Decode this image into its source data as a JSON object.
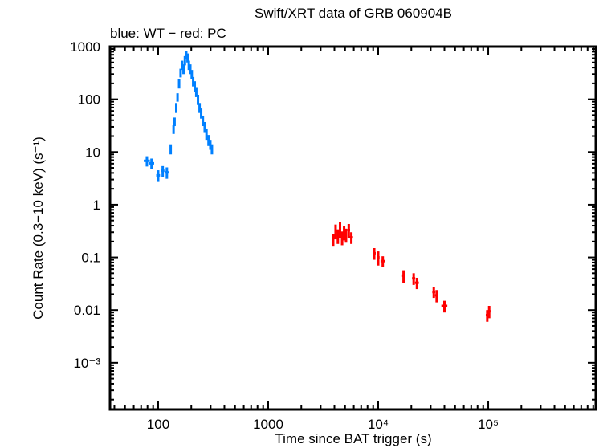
{
  "chart_data": {
    "type": "scatter",
    "title": "Swift/XRT data of GRB 060904B",
    "subtitle": "blue: WT − red: PC",
    "xlabel": "Time since BAT trigger (s)",
    "ylabel": "Count Rate (0.3−10 keV) (s⁻¹)",
    "xscale": "log",
    "yscale": "log",
    "xlim": [
      36.5,
      950000
    ],
    "ylim": [
      0.00013,
      1000
    ],
    "xticks": [
      {
        "value": 100,
        "label": "100"
      },
      {
        "value": 1000,
        "label": "1000"
      },
      {
        "value": 10000,
        "label": "10⁴"
      },
      {
        "value": 100000,
        "label": "10⁵"
      }
    ],
    "yticks": [
      {
        "value": 1000,
        "label": "1000"
      },
      {
        "value": 100,
        "label": "100"
      },
      {
        "value": 10,
        "label": "10"
      },
      {
        "value": 1,
        "label": "1"
      },
      {
        "value": 0.1,
        "label": "0.1"
      },
      {
        "value": 0.01,
        "label": "0.01"
      },
      {
        "value": 0.001,
        "label": "10⁻³"
      }
    ],
    "grid": false,
    "legend": "none",
    "series": [
      {
        "name": "WT",
        "color": "#0080ff",
        "points": [
          {
            "x": 79,
            "y": 6.8,
            "xerr": 5,
            "yerr": 1.5
          },
          {
            "x": 87,
            "y": 6.1,
            "xerr": 5,
            "yerr": 1.4
          },
          {
            "x": 100,
            "y": 3.6,
            "xerr": 4,
            "yerr": 0.9
          },
          {
            "x": 110,
            "y": 4.4,
            "xerr": 4,
            "yerr": 1.0
          },
          {
            "x": 120,
            "y": 4.1,
            "xerr": 5,
            "yerr": 1.0
          },
          {
            "x": 130,
            "y": 11.5,
            "xerr": 1,
            "yerr": 2.5
          },
          {
            "x": 138,
            "y": 27,
            "xerr": 1,
            "yerr": 5
          },
          {
            "x": 141,
            "y": 38,
            "xerr": 1,
            "yerr": 7
          },
          {
            "x": 146,
            "y": 70,
            "xerr": 1,
            "yerr": 15
          },
          {
            "x": 150,
            "y": 110,
            "xerr": 1,
            "yerr": 20
          },
          {
            "x": 155,
            "y": 200,
            "xerr": 1,
            "yerr": 40
          },
          {
            "x": 160,
            "y": 320,
            "xerr": 1,
            "yerr": 60
          },
          {
            "x": 165,
            "y": 450,
            "xerr": 1,
            "yerr": 90
          },
          {
            "x": 170,
            "y": 380,
            "xerr": 1,
            "yerr": 80
          },
          {
            "x": 175,
            "y": 550,
            "xerr": 1,
            "yerr": 110
          },
          {
            "x": 180,
            "y": 700,
            "xerr": 1,
            "yerr": 130
          },
          {
            "x": 185,
            "y": 620,
            "xerr": 1,
            "yerr": 120
          },
          {
            "x": 190,
            "y": 450,
            "xerr": 1,
            "yerr": 90
          },
          {
            "x": 196,
            "y": 380,
            "xerr": 1,
            "yerr": 80
          },
          {
            "x": 202,
            "y": 300,
            "xerr": 1,
            "yerr": 60
          },
          {
            "x": 208,
            "y": 220,
            "xerr": 1,
            "yerr": 45
          },
          {
            "x": 215,
            "y": 180,
            "xerr": 1,
            "yerr": 40
          },
          {
            "x": 222,
            "y": 140,
            "xerr": 1,
            "yerr": 30
          },
          {
            "x": 230,
            "y": 100,
            "xerr": 1,
            "yerr": 22
          },
          {
            "x": 238,
            "y": 70,
            "xerr": 1,
            "yerr": 15
          },
          {
            "x": 246,
            "y": 55,
            "xerr": 1,
            "yerr": 12
          },
          {
            "x": 255,
            "y": 40,
            "xerr": 1,
            "yerr": 9
          },
          {
            "x": 265,
            "y": 30,
            "xerr": 1,
            "yerr": 7
          },
          {
            "x": 275,
            "y": 22,
            "xerr": 1,
            "yerr": 5
          },
          {
            "x": 287,
            "y": 17,
            "xerr": 1,
            "yerr": 4
          },
          {
            "x": 298,
            "y": 14,
            "xerr": 1,
            "yerr": 3
          },
          {
            "x": 308,
            "y": 11.5,
            "xerr": 1,
            "yerr": 2.5
          }
        ]
      },
      {
        "name": "PC",
        "color": "#ff0000",
        "points": [
          {
            "x": 3900,
            "y": 0.22,
            "xerr": 100,
            "yerr": 0.06
          },
          {
            "x": 4100,
            "y": 0.32,
            "xerr": 100,
            "yerr": 0.1
          },
          {
            "x": 4300,
            "y": 0.26,
            "xerr": 100,
            "yerr": 0.08
          },
          {
            "x": 4500,
            "y": 0.35,
            "xerr": 100,
            "yerr": 0.12
          },
          {
            "x": 4700,
            "y": 0.24,
            "xerr": 100,
            "yerr": 0.07
          },
          {
            "x": 4900,
            "y": 0.3,
            "xerr": 100,
            "yerr": 0.09
          },
          {
            "x": 5100,
            "y": 0.27,
            "xerr": 100,
            "yerr": 0.08
          },
          {
            "x": 5400,
            "y": 0.33,
            "xerr": 150,
            "yerr": 0.1
          },
          {
            "x": 5700,
            "y": 0.24,
            "xerr": 200,
            "yerr": 0.06
          },
          {
            "x": 9200,
            "y": 0.12,
            "xerr": 300,
            "yerr": 0.03
          },
          {
            "x": 10000,
            "y": 0.1,
            "xerr": 300,
            "yerr": 0.03
          },
          {
            "x": 11000,
            "y": 0.085,
            "xerr": 500,
            "yerr": 0.02
          },
          {
            "x": 17000,
            "y": 0.045,
            "xerr": 500,
            "yerr": 0.012
          },
          {
            "x": 21000,
            "y": 0.04,
            "xerr": 700,
            "yerr": 0.01
          },
          {
            "x": 22500,
            "y": 0.033,
            "xerr": 900,
            "yerr": 0.008
          },
          {
            "x": 32000,
            "y": 0.022,
            "xerr": 1000,
            "yerr": 0.005
          },
          {
            "x": 34000,
            "y": 0.019,
            "xerr": 1200,
            "yerr": 0.005
          },
          {
            "x": 40000,
            "y": 0.012,
            "xerr": 2500,
            "yerr": 0.003
          },
          {
            "x": 98000,
            "y": 0.008,
            "xerr": 3000,
            "yerr": 0.002
          },
          {
            "x": 102000,
            "y": 0.0095,
            "xerr": 3000,
            "yerr": 0.0025
          }
        ]
      }
    ]
  }
}
